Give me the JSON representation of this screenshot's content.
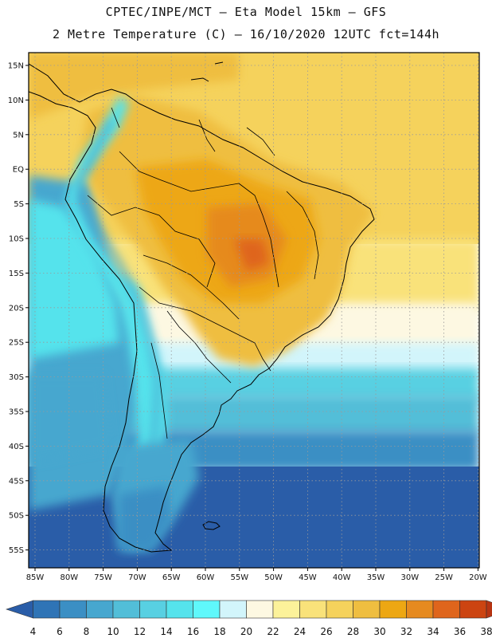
{
  "header": {
    "line1": "CPTEC/INPE/MCT –  Eta Model 15km – GFS",
    "line2": "2 Metre Temperature (C) – 16/10/2020 12UTC fct=144h"
  },
  "axes": {
    "lat_labels": [
      "15N",
      "10N",
      "5N",
      "EQ",
      "5S",
      "10S",
      "15S",
      "20S",
      "25S",
      "30S",
      "35S",
      "40S",
      "45S",
      "50S",
      "55S"
    ],
    "lon_labels": [
      "85W",
      "80W",
      "75W",
      "70W",
      "65W",
      "60W",
      "55W",
      "50W",
      "45W",
      "40W",
      "35W",
      "30W",
      "25W",
      "20W"
    ]
  },
  "colorbar": {
    "labels": [
      "4",
      "6",
      "8",
      "10",
      "12",
      "14",
      "16",
      "18",
      "20",
      "22",
      "24",
      "26",
      "28",
      "30",
      "32",
      "34",
      "36",
      "38"
    ],
    "colors": [
      "#2a5da8",
      "#2f74b6",
      "#3b8fc4",
      "#47a7cf",
      "#52bed8",
      "#58d0e2",
      "#55e3ec",
      "#5ff8fb",
      "#d2f5fb",
      "#fdf8e2",
      "#fcf29a",
      "#f9e27a",
      "#f5d25c",
      "#efbe40",
      "#eda713",
      "#e68a1f",
      "#df651c",
      "#cc4411",
      "#b73412"
    ]
  },
  "field_colors": {
    "ocean_cold": "#2a5da8",
    "ocean_cool": "#47a7cf",
    "ocean_mid": "#58d0e2",
    "ocean_warm": "#fdf8e2",
    "tropical": "#f5d25c",
    "land_hot": "#eda713",
    "land_very_hot": "#e68a1f",
    "andes": "#5ff8fb"
  }
}
